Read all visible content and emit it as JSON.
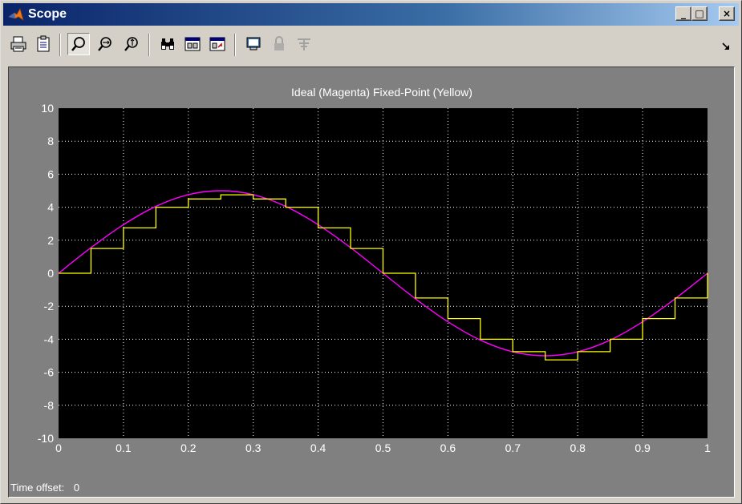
{
  "window": {
    "title": "Scope",
    "caption_buttons": {
      "minimize": "_",
      "maximize": "□",
      "close": "×"
    }
  },
  "toolbar": {
    "buttons": [
      {
        "name": "print-icon"
      },
      {
        "name": "parameters-icon"
      },
      {
        "name": "zoom-icon",
        "pressed": true
      },
      {
        "name": "zoom-x-icon"
      },
      {
        "name": "zoom-y-icon"
      },
      {
        "name": "autoscale-icon"
      },
      {
        "name": "save-axes-icon"
      },
      {
        "name": "restore-axes-icon"
      },
      {
        "name": "floating-scope-icon"
      },
      {
        "name": "lock-axes-icon",
        "disabled": true
      },
      {
        "name": "signal-selection-icon",
        "disabled": true
      }
    ]
  },
  "status": {
    "time_offset_label": "Time offset:",
    "time_offset_value": "0"
  },
  "colors": {
    "plot_background": "#000000",
    "figure_background": "#808080",
    "ideal_series": "#ff00ff",
    "fixed_point_series": "#ffff00",
    "grid": "#ffffff"
  },
  "chart_data": {
    "type": "line",
    "title": "Ideal (Magenta)    Fixed-Point (Yellow)",
    "xlabel": "",
    "ylabel": "",
    "xlim": [
      0,
      1
    ],
    "ylim": [
      -10,
      10
    ],
    "x_ticks": [
      "0",
      "0.1",
      "0.2",
      "0.3",
      "0.4",
      "0.5",
      "0.6",
      "0.7",
      "0.8",
      "0.9",
      "1"
    ],
    "y_ticks": [
      "10",
      "8",
      "6",
      "4",
      "2",
      "0",
      "-2",
      "-4",
      "-6",
      "-8",
      "-10"
    ],
    "grid": true,
    "grid_style": "dotted",
    "series": [
      {
        "color": "#ff00ff",
        "style": "smooth",
        "x": [
          0,
          0.05,
          0.1,
          0.15,
          0.2,
          0.25,
          0.3,
          0.35,
          0.4,
          0.45,
          0.5,
          0.55,
          0.6,
          0.65,
          0.7,
          0.75,
          0.8,
          0.85,
          0.9,
          0.95,
          1
        ],
        "values": [
          0,
          1.55,
          2.94,
          4.05,
          4.76,
          5,
          4.76,
          4.05,
          2.94,
          1.55,
          0,
          -1.55,
          -2.94,
          -4.05,
          -4.76,
          -5,
          -4.76,
          -4.05,
          -2.94,
          -1.55,
          0
        ]
      },
      {
        "color": "#ffff00",
        "style": "staircase",
        "x": [
          0,
          0.05,
          0.1,
          0.15,
          0.2,
          0.25,
          0.3,
          0.35,
          0.4,
          0.45,
          0.5,
          0.55,
          0.6,
          0.65,
          0.7,
          0.75,
          0.8,
          0.85,
          0.9,
          0.95,
          1
        ],
        "values": [
          0,
          1.5,
          2.75,
          4.0,
          4.5,
          4.75,
          4.5,
          4.0,
          2.75,
          1.5,
          0,
          -1.5,
          -2.75,
          -4.0,
          -4.75,
          -5.25,
          -4.75,
          -4.0,
          -2.75,
          -1.5,
          0
        ]
      }
    ]
  }
}
